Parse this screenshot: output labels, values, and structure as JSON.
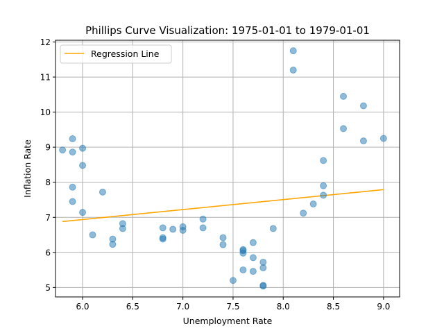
{
  "chart_data": {
    "type": "scatter",
    "title": "Phillips Curve Visualization: 1975-01-01 to 1979-01-01",
    "xlabel": "Unemployment Rate",
    "ylabel": "Inflation Rate",
    "xlim": [
      5.73,
      9.16
    ],
    "ylim": [
      4.73,
      12.05
    ],
    "xticks": [
      "6.0",
      "6.5",
      "7.0",
      "7.5",
      "8.0",
      "8.5",
      "9.0"
    ],
    "yticks": [
      "5",
      "6",
      "7",
      "8",
      "9",
      "10",
      "11",
      "12"
    ],
    "grid": true,
    "legend": {
      "location": "top-left",
      "entries": [
        "Regression Line"
      ]
    },
    "colors": {
      "points": "#1f77b4",
      "regression": "#ffa500"
    },
    "points": [
      [
        8.1,
        11.75
      ],
      [
        8.1,
        11.2
      ],
      [
        8.6,
        10.45
      ],
      [
        8.8,
        10.18
      ],
      [
        8.6,
        9.53
      ],
      [
        9.0,
        9.25
      ],
      [
        8.8,
        9.18
      ],
      [
        8.4,
        8.62
      ],
      [
        8.4,
        7.9
      ],
      [
        8.4,
        7.63
      ],
      [
        8.3,
        7.38
      ],
      [
        8.2,
        7.12
      ],
      [
        7.9,
        6.68
      ],
      [
        7.7,
        6.28
      ],
      [
        7.6,
        6.08
      ],
      [
        7.6,
        6.05
      ],
      [
        7.6,
        5.98
      ],
      [
        7.7,
        5.85
      ],
      [
        7.8,
        5.72
      ],
      [
        7.8,
        5.56
      ],
      [
        7.6,
        5.5
      ],
      [
        7.7,
        5.46
      ],
      [
        7.5,
        5.2
      ],
      [
        7.8,
        5.06
      ],
      [
        7.8,
        5.04
      ],
      [
        7.4,
        6.42
      ],
      [
        7.4,
        6.22
      ],
      [
        7.2,
        6.95
      ],
      [
        7.2,
        6.7
      ],
      [
        7.0,
        6.73
      ],
      [
        7.0,
        6.63
      ],
      [
        6.9,
        6.66
      ],
      [
        6.8,
        6.7
      ],
      [
        6.8,
        6.42
      ],
      [
        6.8,
        6.38
      ],
      [
        6.4,
        6.82
      ],
      [
        6.4,
        6.68
      ],
      [
        6.3,
        6.38
      ],
      [
        6.3,
        6.23
      ],
      [
        6.1,
        6.5
      ],
      [
        6.2,
        7.72
      ],
      [
        6.0,
        7.14
      ],
      [
        5.9,
        7.45
      ],
      [
        5.9,
        7.86
      ],
      [
        6.0,
        8.48
      ],
      [
        6.0,
        8.97
      ],
      [
        5.9,
        8.86
      ],
      [
        5.8,
        8.92
      ],
      [
        5.9,
        9.24
      ]
    ],
    "regression": {
      "x": [
        5.8,
        9.0
      ],
      "y": [
        6.88,
        7.79
      ]
    }
  }
}
